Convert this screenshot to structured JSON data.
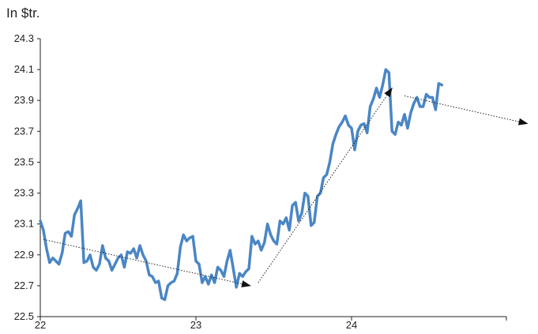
{
  "chart_data": {
    "type": "line",
    "unit_label": "In $tr.",
    "ylim": [
      22.5,
      24.3
    ],
    "y_ticks": [
      "22.5",
      "22.7",
      "22.9",
      "23.1",
      "23.3",
      "23.5",
      "23.7",
      "23.9",
      "24.1",
      "24.3"
    ],
    "xlim": [
      22.0,
      25.0
    ],
    "x_ticks": [
      {
        "label": "22",
        "value": 22.0
      },
      {
        "label": "23",
        "value": 23.0
      },
      {
        "label": "24",
        "value": 24.0
      }
    ],
    "grid": false,
    "line_color": "#4a86c5",
    "arrow_color": "#222222",
    "series": [
      {
        "x": [
          22.0,
          22.02,
          22.04,
          22.06,
          22.08,
          22.1,
          22.12,
          22.14,
          22.16,
          22.18,
          22.2,
          22.22,
          22.24,
          22.26,
          22.28,
          22.3,
          22.32,
          22.34,
          22.36,
          22.38,
          22.4,
          22.42,
          22.44,
          22.46,
          22.48,
          22.5,
          22.52,
          22.54,
          22.56,
          22.58,
          22.6,
          22.62,
          22.64,
          22.66,
          22.68,
          22.7,
          22.72,
          22.74,
          22.76,
          22.78,
          22.8,
          22.82,
          22.84,
          22.86,
          22.88,
          22.9,
          22.92,
          22.94,
          22.96,
          22.98,
          23.0,
          23.02,
          23.04,
          23.06,
          23.08,
          23.1,
          23.12,
          23.14,
          23.16,
          23.18,
          23.2,
          23.22,
          23.24,
          23.26,
          23.28,
          23.3,
          23.32,
          23.34,
          23.36,
          23.38,
          23.4,
          23.42,
          23.44,
          23.46,
          23.48,
          23.5,
          23.52,
          23.54,
          23.56,
          23.58,
          23.6,
          23.62,
          23.64,
          23.66,
          23.68,
          23.7,
          23.72,
          23.74,
          23.76,
          23.78,
          23.8,
          23.82,
          23.84,
          23.86,
          23.88,
          23.9,
          23.92,
          23.94,
          23.96,
          23.98,
          24.0,
          24.02,
          24.04,
          24.06,
          24.08,
          24.1,
          24.12,
          24.14,
          24.16,
          24.18,
          24.2,
          24.22,
          24.24,
          24.26,
          24.28,
          24.3,
          24.32,
          24.34,
          24.36,
          24.38,
          24.4,
          24.42,
          24.44,
          24.46,
          24.48,
          24.5,
          24.52,
          24.54,
          24.56,
          24.58
        ],
        "values": [
          23.12,
          23.06,
          22.94,
          22.85,
          22.88,
          22.86,
          22.84,
          22.91,
          23.04,
          23.05,
          23.02,
          23.16,
          23.2,
          23.25,
          22.85,
          22.86,
          22.9,
          22.82,
          22.8,
          22.84,
          22.96,
          22.88,
          22.86,
          22.8,
          22.84,
          22.88,
          22.9,
          22.82,
          22.92,
          22.91,
          22.94,
          22.88,
          22.96,
          22.9,
          22.86,
          22.77,
          22.76,
          22.72,
          22.73,
          22.62,
          22.61,
          22.7,
          22.72,
          22.73,
          22.78,
          22.95,
          23.03,
          22.99,
          23.01,
          23.02,
          22.86,
          22.84,
          22.72,
          22.76,
          22.71,
          22.77,
          22.72,
          22.82,
          22.8,
          22.76,
          22.86,
          22.93,
          22.81,
          22.69,
          22.78,
          22.76,
          22.79,
          22.81,
          23.02,
          22.97,
          22.99,
          22.93,
          22.98,
          23.1,
          23.03,
          22.99,
          22.97,
          23.12,
          23.1,
          23.14,
          23.06,
          23.22,
          23.24,
          23.12,
          23.17,
          23.3,
          23.28,
          23.09,
          23.11,
          23.28,
          23.3,
          23.4,
          23.42,
          23.5,
          23.62,
          23.68,
          23.73,
          23.76,
          23.8,
          23.74,
          23.72,
          23.58,
          23.7,
          23.74,
          23.75,
          23.69,
          23.86,
          23.91,
          23.98,
          23.92,
          24.0,
          24.1,
          24.08,
          23.7,
          23.68,
          23.76,
          23.74,
          23.81,
          23.72,
          23.82,
          23.88,
          23.92,
          23.86,
          23.86,
          23.94,
          23.92,
          23.92,
          23.84,
          24.01,
          24.0
        ]
      }
    ],
    "trend_arrows": [
      {
        "from": [
          22.02,
          23.0
        ],
        "to": [
          23.35,
          22.7
        ]
      },
      {
        "from": [
          23.4,
          22.72
        ],
        "to": [
          24.26,
          23.98
        ]
      },
      {
        "from": [
          24.34,
          23.93
        ],
        "to": [
          25.13,
          23.75
        ]
      }
    ]
  }
}
